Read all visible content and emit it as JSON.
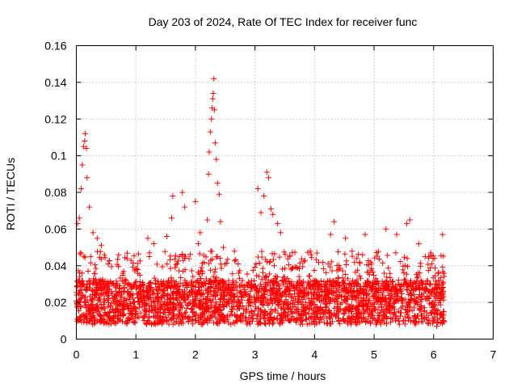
{
  "chart_data": {
    "type": "scatter",
    "title": "Day 203 of 2024, Rate Of TEC Index for receiver func",
    "xlabel": "GPS time / hours",
    "ylabel": "ROTI / TECUs",
    "xlim": [
      0,
      7
    ],
    "ylim": [
      0,
      0.16
    ],
    "x_ticks": [
      0,
      1,
      2,
      3,
      4,
      5,
      6,
      7
    ],
    "y_ticks": [
      0,
      0.02,
      0.04,
      0.06,
      0.08,
      0.1,
      0.12,
      0.14,
      0.16
    ],
    "x_tick_labels": [
      "0",
      "1",
      "2",
      "3",
      "4",
      "5",
      "6",
      "7"
    ],
    "y_tick_labels": [
      "0",
      "0.02",
      "0.04",
      "0.06",
      "0.08",
      "0.1",
      "0.12",
      "0.14",
      "0.16"
    ],
    "grid": true,
    "marker": "+",
    "marker_color": "#ff0000",
    "x_data_range": [
      0.0,
      6.18
    ],
    "baseline_band": [
      0.008,
      0.032
    ],
    "series": [
      {
        "name": "ROTI",
        "color": "#ff0000",
        "notable_points": [
          {
            "x": 0.02,
            "y": 0.063
          },
          {
            "x": 0.05,
            "y": 0.066
          },
          {
            "x": 0.08,
            "y": 0.082
          },
          {
            "x": 0.1,
            "y": 0.095
          },
          {
            "x": 0.12,
            "y": 0.105
          },
          {
            "x": 0.14,
            "y": 0.108
          },
          {
            "x": 0.15,
            "y": 0.112
          },
          {
            "x": 0.17,
            "y": 0.104
          },
          {
            "x": 0.18,
            "y": 0.088
          },
          {
            "x": 0.22,
            "y": 0.072
          },
          {
            "x": 0.28,
            "y": 0.058
          },
          {
            "x": 0.35,
            "y": 0.055
          },
          {
            "x": 0.42,
            "y": 0.051
          },
          {
            "x": 0.47,
            "y": 0.046
          },
          {
            "x": 1.2,
            "y": 0.055
          },
          {
            "x": 1.3,
            "y": 0.052
          },
          {
            "x": 1.52,
            "y": 0.056
          },
          {
            "x": 1.62,
            "y": 0.078
          },
          {
            "x": 1.6,
            "y": 0.066
          },
          {
            "x": 1.78,
            "y": 0.08
          },
          {
            "x": 1.82,
            "y": 0.072
          },
          {
            "x": 2.0,
            "y": 0.075
          },
          {
            "x": 2.05,
            "y": 0.052
          },
          {
            "x": 2.08,
            "y": 0.058
          },
          {
            "x": 2.2,
            "y": 0.065
          },
          {
            "x": 2.22,
            "y": 0.09
          },
          {
            "x": 2.23,
            "y": 0.102
          },
          {
            "x": 2.25,
            "y": 0.113
          },
          {
            "x": 2.27,
            "y": 0.12
          },
          {
            "x": 2.28,
            "y": 0.126
          },
          {
            "x": 2.3,
            "y": 0.134
          },
          {
            "x": 2.31,
            "y": 0.142
          },
          {
            "x": 2.29,
            "y": 0.131
          },
          {
            "x": 2.32,
            "y": 0.125
          },
          {
            "x": 2.33,
            "y": 0.107
          },
          {
            "x": 2.35,
            "y": 0.098
          },
          {
            "x": 2.37,
            "y": 0.085
          },
          {
            "x": 2.4,
            "y": 0.079
          },
          {
            "x": 2.42,
            "y": 0.064
          },
          {
            "x": 2.47,
            "y": 0.05
          },
          {
            "x": 3.05,
            "y": 0.082
          },
          {
            "x": 3.1,
            "y": 0.069
          },
          {
            "x": 3.15,
            "y": 0.078
          },
          {
            "x": 3.2,
            "y": 0.091
          },
          {
            "x": 3.23,
            "y": 0.088
          },
          {
            "x": 3.27,
            "y": 0.071
          },
          {
            "x": 3.3,
            "y": 0.068
          },
          {
            "x": 3.38,
            "y": 0.063
          },
          {
            "x": 3.43,
            "y": 0.058
          },
          {
            "x": 4.33,
            "y": 0.064
          },
          {
            "x": 4.27,
            "y": 0.057
          },
          {
            "x": 4.52,
            "y": 0.055
          },
          {
            "x": 4.85,
            "y": 0.057
          },
          {
            "x": 5.2,
            "y": 0.06
          },
          {
            "x": 5.38,
            "y": 0.057
          },
          {
            "x": 5.55,
            "y": 0.063
          },
          {
            "x": 5.6,
            "y": 0.065
          },
          {
            "x": 5.75,
            "y": 0.052
          },
          {
            "x": 5.95,
            "y": 0.047
          },
          {
            "x": 6.15,
            "y": 0.057
          },
          {
            "x": 6.05,
            "y": 0.007
          }
        ]
      }
    ]
  }
}
